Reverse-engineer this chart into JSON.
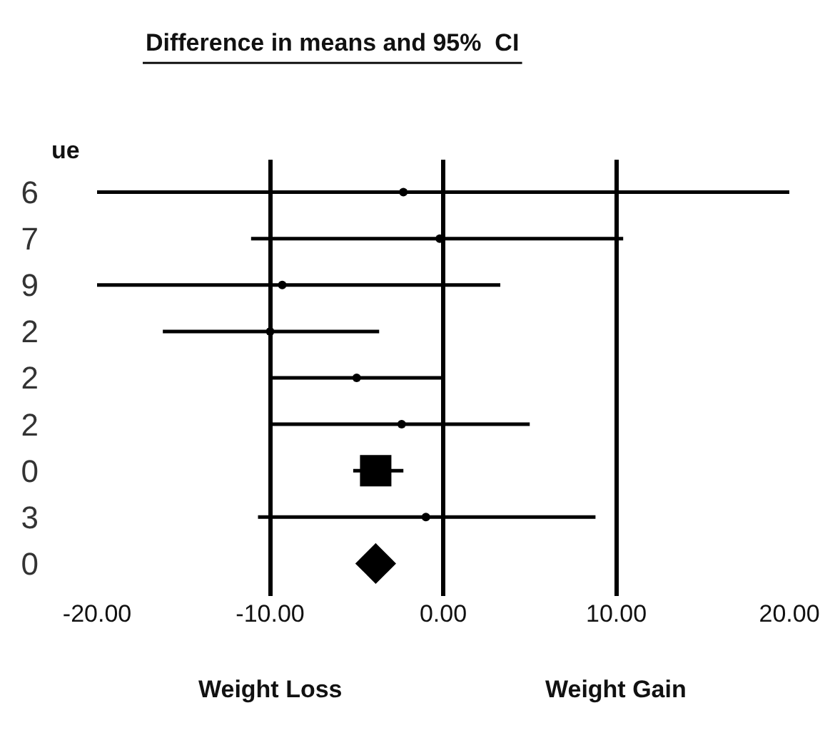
{
  "chart_data": {
    "type": "scatter",
    "title": "Difference in means and 95%  CI",
    "ylabel": "ue",
    "orientation": "horizontal",
    "categories": [
      "6",
      "7",
      "9",
      "2",
      "2",
      "2",
      "0",
      "3",
      "0"
    ],
    "series": [
      {
        "color": "#000000",
        "marker": "circle",
        "values": [
          -2.3,
          -0.2,
          -9.3,
          -10.0,
          -5.0,
          -2.4,
          null,
          -1.0,
          null
        ],
        "errors": [
          [
            -20,
            20
          ],
          [
            -11.1,
            10.4
          ],
          [
            -20,
            3.3
          ],
          [
            -16.2,
            -3.7
          ],
          [
            -10.0,
            0.0
          ],
          [
            -10.0,
            5.0
          ],
          null,
          [
            -10.7,
            8.8
          ],
          null
        ]
      },
      {
        "color": "#000000",
        "marker": "square",
        "values": [
          null,
          null,
          null,
          null,
          null,
          null,
          -3.9,
          null,
          null
        ],
        "errors": [
          null,
          null,
          null,
          null,
          null,
          null,
          [
            -5.2,
            -2.3
          ],
          null,
          null
        ]
      },
      {
        "color": "#000000",
        "marker": "diamond",
        "values": [
          null,
          null,
          null,
          null,
          null,
          null,
          null,
          null,
          -3.9
        ]
      }
    ],
    "xlim": [
      -20,
      20
    ],
    "xticks": [
      {
        "value": -20,
        "label": "-20.00"
      },
      {
        "value": -10,
        "label": "-10.00"
      },
      {
        "value": 0,
        "label": "0.00"
      },
      {
        "value": 10,
        "label": "10.00"
      },
      {
        "value": 20,
        "label": "20.00"
      }
    ],
    "grid": "x",
    "annotations": [
      "Weight Loss",
      "Weight Gain"
    ]
  }
}
